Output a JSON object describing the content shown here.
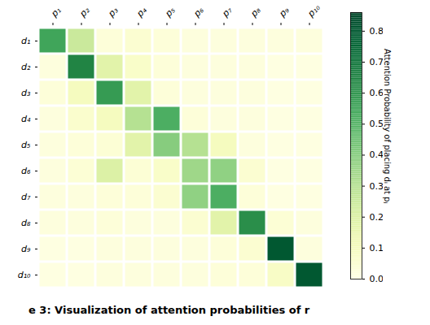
{
  "chart_data": {
    "type": "heatmap",
    "x_categories": [
      "p₁",
      "p₂",
      "p₃",
      "p₄",
      "p₅",
      "p₆",
      "p₇",
      "p₈",
      "p₉",
      "p₁₀"
    ],
    "y_categories": [
      "d₁",
      "d₂",
      "d₃",
      "d₄",
      "d₅",
      "d₆",
      "d₇",
      "d₈",
      "d₉",
      "d₁₀"
    ],
    "values": [
      [
        0.55,
        0.25,
        0.03,
        0.05,
        0.03,
        0.02,
        0.02,
        0.02,
        0.02,
        0.02
      ],
      [
        0.02,
        0.65,
        0.18,
        0.07,
        0.03,
        0.02,
        0.02,
        0.02,
        0.01,
        0.01
      ],
      [
        0.03,
        0.1,
        0.58,
        0.18,
        0.03,
        0.02,
        0.02,
        0.02,
        0.01,
        0.01
      ],
      [
        0.02,
        0.06,
        0.1,
        0.3,
        0.52,
        0.03,
        0.02,
        0.02,
        0.01,
        0.01
      ],
      [
        0.02,
        0.03,
        0.04,
        0.18,
        0.4,
        0.3,
        0.1,
        0.02,
        0.01,
        0.01
      ],
      [
        0.02,
        0.04,
        0.2,
        0.04,
        0.07,
        0.35,
        0.38,
        0.05,
        0.01,
        0.01
      ],
      [
        0.02,
        0.02,
        0.03,
        0.03,
        0.05,
        0.38,
        0.52,
        0.03,
        0.01,
        0.01
      ],
      [
        0.02,
        0.02,
        0.03,
        0.02,
        0.02,
        0.05,
        0.18,
        0.62,
        0.04,
        0.02
      ],
      [
        0.01,
        0.01,
        0.02,
        0.02,
        0.02,
        0.02,
        0.03,
        0.05,
        0.8,
        0.02
      ],
      [
        0.01,
        0.01,
        0.02,
        0.02,
        0.02,
        0.02,
        0.03,
        0.03,
        0.08,
        0.8
      ]
    ],
    "color": "YlGn",
    "colorbar": {
      "label": "Attention Probability of placing dᵢ at pⱼ",
      "range": [
        0,
        0.86
      ],
      "ticks": [
        {
          "value": 0,
          "label": "0.0"
        },
        0.1,
        0.2,
        0.3,
        0.4,
        0.5,
        0.6,
        0.7,
        0.8
      ]
    },
    "caption": "e 3: Visualization of attention probabilities of r"
  }
}
